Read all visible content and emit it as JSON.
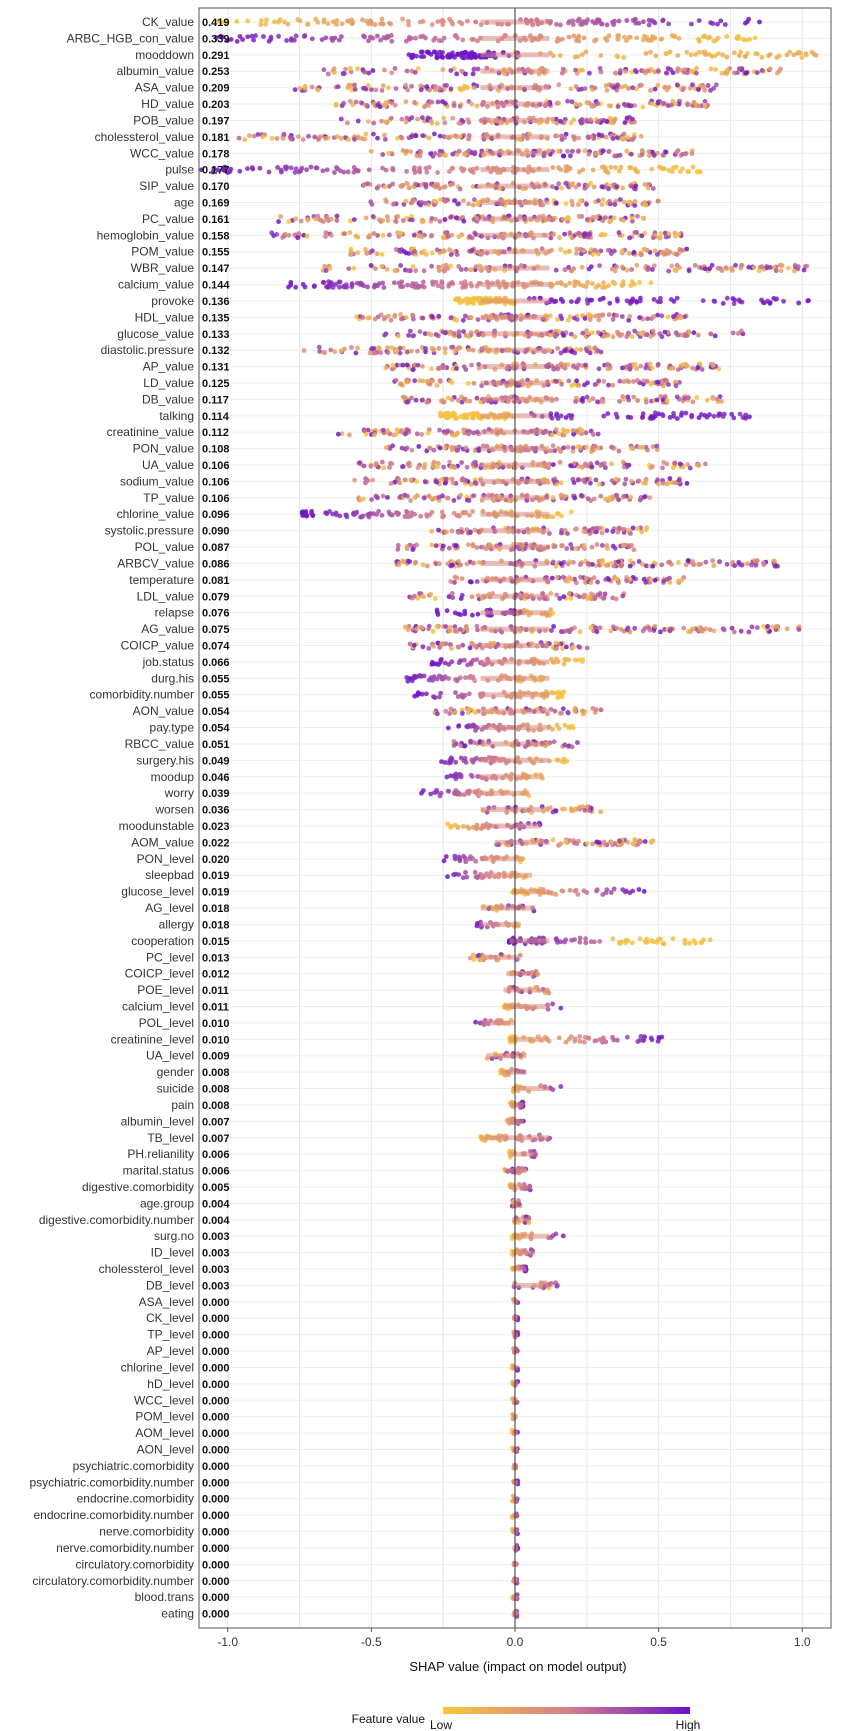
{
  "chart_data": {
    "type": "scatter",
    "subtype": "shap_beeswarm_summary",
    "xlabel": "SHAP value (impact on model output)",
    "xlim": [
      -1.1,
      1.1
    ],
    "xticks": [
      -1.0,
      -0.5,
      0.0,
      0.5,
      1.0
    ],
    "xtick_labels": [
      "-1.0",
      "-0.5",
      "0.0",
      "0.5",
      "1.0"
    ],
    "grid": true,
    "legend": {
      "title": "Feature value",
      "low_label": "Low",
      "high_label": "High",
      "low_color": "#f7c53a",
      "mid_color": "#d4818a",
      "high_color": "#6a12c9",
      "position": "bottom-center"
    },
    "features": [
      {
        "name": "CK_value",
        "mean_abs_shap": "0.419",
        "min": -1.05,
        "max": 0.86,
        "pattern": "low_left"
      },
      {
        "name": "ARBC_HGB_con_value",
        "mean_abs_shap": "0.339",
        "min": -1.05,
        "max": 0.85,
        "pattern": "high_left"
      },
      {
        "name": "mooddown",
        "mean_abs_shap": "0.291",
        "min": -0.37,
        "max": 1.08,
        "pattern": "high_left_cluster"
      },
      {
        "name": "albumin_value",
        "mean_abs_shap": "0.253",
        "min": -0.67,
        "max": 0.94,
        "pattern": "mixed"
      },
      {
        "name": "ASA_value",
        "mean_abs_shap": "0.209",
        "min": -0.77,
        "max": 0.72,
        "pattern": "mixed"
      },
      {
        "name": "HD_value",
        "mean_abs_shap": "0.203",
        "min": -0.63,
        "max": 0.68,
        "pattern": "mixed"
      },
      {
        "name": "POB_value",
        "mean_abs_shap": "0.197",
        "min": -0.61,
        "max": 0.43,
        "pattern": "mixed"
      },
      {
        "name": "cholessterol_value",
        "mean_abs_shap": "0.181",
        "min": -0.97,
        "max": 0.45,
        "pattern": "mixed"
      },
      {
        "name": "WCC_value",
        "mean_abs_shap": "0.178",
        "min": -0.51,
        "max": 0.62,
        "pattern": "mixed"
      },
      {
        "name": "pulse",
        "mean_abs_shap": "0.177",
        "min": -1.1,
        "max": 0.65,
        "pattern": "high_left"
      },
      {
        "name": "SIP_value",
        "mean_abs_shap": "0.170",
        "min": -0.53,
        "max": 0.49,
        "pattern": "mixed"
      },
      {
        "name": "age",
        "mean_abs_shap": "0.169",
        "min": -0.51,
        "max": 0.5,
        "pattern": "mixed"
      },
      {
        "name": "PC_value",
        "mean_abs_shap": "0.161",
        "min": -0.83,
        "max": 0.45,
        "pattern": "mixed"
      },
      {
        "name": "hemoglobin_value",
        "mean_abs_shap": "0.158",
        "min": -0.86,
        "max": 0.58,
        "pattern": "mixed"
      },
      {
        "name": "POM_value",
        "mean_abs_shap": "0.155",
        "min": -0.58,
        "max": 0.6,
        "pattern": "mixed"
      },
      {
        "name": "WBR_value",
        "mean_abs_shap": "0.147",
        "min": -0.68,
        "max": 1.03,
        "pattern": "mixed"
      },
      {
        "name": "calcium_value",
        "mean_abs_shap": "0.144",
        "min": -0.8,
        "max": 0.49,
        "pattern": "high_left"
      },
      {
        "name": "provoke",
        "mean_abs_shap": "0.136",
        "min": -0.21,
        "max": 1.03,
        "pattern": "low_left_cluster"
      },
      {
        "name": "HDL_value",
        "mean_abs_shap": "0.135",
        "min": -0.57,
        "max": 0.6,
        "pattern": "mixed"
      },
      {
        "name": "glucose_value",
        "mean_abs_shap": "0.133",
        "min": -0.46,
        "max": 0.81,
        "pattern": "mixed"
      },
      {
        "name": "diastolic.pressure",
        "mean_abs_shap": "0.132",
        "min": -0.74,
        "max": 0.3,
        "pattern": "mixed"
      },
      {
        "name": "AP_value",
        "mean_abs_shap": "0.131",
        "min": -0.45,
        "max": 0.71,
        "pattern": "mixed"
      },
      {
        "name": "LD_value",
        "mean_abs_shap": "0.125",
        "min": -0.44,
        "max": 0.58,
        "pattern": "mixed"
      },
      {
        "name": "DB_value",
        "mean_abs_shap": "0.117",
        "min": -0.41,
        "max": 0.72,
        "pattern": "mixed"
      },
      {
        "name": "talking",
        "mean_abs_shap": "0.114",
        "min": -0.26,
        "max": 0.82,
        "pattern": "low_left_cluster"
      },
      {
        "name": "creatinine_value",
        "mean_abs_shap": "0.112",
        "min": -0.62,
        "max": 0.29,
        "pattern": "mixed"
      },
      {
        "name": "PON_value",
        "mean_abs_shap": "0.108",
        "min": -0.45,
        "max": 0.5,
        "pattern": "mixed"
      },
      {
        "name": "UA_value",
        "mean_abs_shap": "0.106",
        "min": -0.55,
        "max": 0.67,
        "pattern": "mixed"
      },
      {
        "name": "sodium_value",
        "mean_abs_shap": "0.106",
        "min": -0.56,
        "max": 0.6,
        "pattern": "mixed"
      },
      {
        "name": "TP_value",
        "mean_abs_shap": "0.106",
        "min": -0.55,
        "max": 0.48,
        "pattern": "mixed"
      },
      {
        "name": "chlorine_value",
        "mean_abs_shap": "0.096",
        "min": -0.75,
        "max": 0.2,
        "pattern": "high_left"
      },
      {
        "name": "systolic.pressure",
        "mean_abs_shap": "0.090",
        "min": -0.3,
        "max": 0.47,
        "pattern": "mixed"
      },
      {
        "name": "POL_value",
        "mean_abs_shap": "0.087",
        "min": -0.41,
        "max": 0.42,
        "pattern": "mixed"
      },
      {
        "name": "ARBCV_value",
        "mean_abs_shap": "0.086",
        "min": -0.42,
        "max": 0.92,
        "pattern": "mixed"
      },
      {
        "name": "temperature",
        "mean_abs_shap": "0.081",
        "min": -0.24,
        "max": 0.6,
        "pattern": "mixed"
      },
      {
        "name": "LDL_value",
        "mean_abs_shap": "0.079",
        "min": -0.37,
        "max": 0.4,
        "pattern": "mixed"
      },
      {
        "name": "relapse",
        "mean_abs_shap": "0.076",
        "min": -0.28,
        "max": 0.14,
        "pattern": "high_left_cluster"
      },
      {
        "name": "AG_value",
        "mean_abs_shap": "0.075",
        "min": -0.39,
        "max": 1.0,
        "pattern": "mixed"
      },
      {
        "name": "COICP_value",
        "mean_abs_shap": "0.074",
        "min": -0.37,
        "max": 0.26,
        "pattern": "mixed"
      },
      {
        "name": "job.status",
        "mean_abs_shap": "0.066",
        "min": -0.3,
        "max": 0.24,
        "pattern": "high_left"
      },
      {
        "name": "durg.his",
        "mean_abs_shap": "0.055",
        "min": -0.4,
        "max": 0.12,
        "pattern": "high_left"
      },
      {
        "name": "comorbidity.number",
        "mean_abs_shap": "0.055",
        "min": -0.35,
        "max": 0.17,
        "pattern": "high_left"
      },
      {
        "name": "AON_value",
        "mean_abs_shap": "0.054",
        "min": -0.3,
        "max": 0.3,
        "pattern": "mixed"
      },
      {
        "name": "pay.type",
        "mean_abs_shap": "0.054",
        "min": -0.24,
        "max": 0.21,
        "pattern": "high_left"
      },
      {
        "name": "RBCC_value",
        "mean_abs_shap": "0.051",
        "min": -0.23,
        "max": 0.23,
        "pattern": "mixed"
      },
      {
        "name": "surgery.his",
        "mean_abs_shap": "0.049",
        "min": -0.28,
        "max": 0.19,
        "pattern": "high_left"
      },
      {
        "name": "moodup",
        "mean_abs_shap": "0.046",
        "min": -0.26,
        "max": 0.1,
        "pattern": "high_left"
      },
      {
        "name": "worry",
        "mean_abs_shap": "0.039",
        "min": -0.34,
        "max": 0.05,
        "pattern": "high_left"
      },
      {
        "name": "worsen",
        "mean_abs_shap": "0.036",
        "min": -0.12,
        "max": 0.3,
        "pattern": "mixed"
      },
      {
        "name": "moodunstable",
        "mean_abs_shap": "0.023",
        "min": -0.24,
        "max": 0.09,
        "pattern": "low_left"
      },
      {
        "name": "AOM_value",
        "mean_abs_shap": "0.022",
        "min": -0.07,
        "max": 0.54,
        "pattern": "mixed"
      },
      {
        "name": "PON_level",
        "mean_abs_shap": "0.020",
        "min": -0.25,
        "max": 0.03,
        "pattern": "high_left"
      },
      {
        "name": "sleepbad",
        "mean_abs_shap": "0.019",
        "min": -0.24,
        "max": 0.06,
        "pattern": "high_left"
      },
      {
        "name": "glucose_level",
        "mean_abs_shap": "0.019",
        "min": -0.01,
        "max": 0.45,
        "pattern": "high_right"
      },
      {
        "name": "AG_level",
        "mean_abs_shap": "0.018",
        "min": -0.12,
        "max": 0.07,
        "pattern": "mixed"
      },
      {
        "name": "allergy",
        "mean_abs_shap": "0.018",
        "min": -0.14,
        "max": 0.02,
        "pattern": "high_left"
      },
      {
        "name": "cooperation",
        "mean_abs_shap": "0.015",
        "min": -0.02,
        "max": 0.68,
        "pattern": "low_right"
      },
      {
        "name": "PC_level",
        "mean_abs_shap": "0.013",
        "min": -0.17,
        "max": 0.02,
        "pattern": "mixed"
      },
      {
        "name": "COICP_level",
        "mean_abs_shap": "0.012",
        "min": -0.03,
        "max": 0.08,
        "pattern": "mixed"
      },
      {
        "name": "POE_level",
        "mean_abs_shap": "0.011",
        "min": -0.04,
        "max": 0.12,
        "pattern": "mixed"
      },
      {
        "name": "calcium_level",
        "mean_abs_shap": "0.011",
        "min": -0.04,
        "max": 0.17,
        "pattern": "high_right"
      },
      {
        "name": "POL_level",
        "mean_abs_shap": "0.010",
        "min": -0.14,
        "max": 0.0,
        "pattern": "high_left"
      },
      {
        "name": "creatinine_level",
        "mean_abs_shap": "0.010",
        "min": -0.02,
        "max": 0.53,
        "pattern": "high_right"
      },
      {
        "name": "UA_level",
        "mean_abs_shap": "0.009",
        "min": -0.1,
        "max": 0.04,
        "pattern": "mixed"
      },
      {
        "name": "gender",
        "mean_abs_shap": "0.008",
        "min": -0.05,
        "max": 0.04,
        "pattern": "high_right"
      },
      {
        "name": "suicide",
        "mean_abs_shap": "0.008",
        "min": -0.01,
        "max": 0.18,
        "pattern": "high_right"
      },
      {
        "name": "pain",
        "mean_abs_shap": "0.008",
        "min": -0.02,
        "max": 0.03,
        "pattern": "low_left"
      },
      {
        "name": "albumin_level",
        "mean_abs_shap": "0.007",
        "min": -0.03,
        "max": 0.03,
        "pattern": "high_right"
      },
      {
        "name": "TB_level",
        "mean_abs_shap": "0.007",
        "min": -0.12,
        "max": 0.18,
        "pattern": "high_right"
      },
      {
        "name": "PH.relianility",
        "mean_abs_shap": "0.006",
        "min": -0.02,
        "max": 0.08,
        "pattern": "high_right"
      },
      {
        "name": "marital.status",
        "mean_abs_shap": "0.006",
        "min": -0.04,
        "max": 0.04,
        "pattern": "mixed"
      },
      {
        "name": "digestive.comorbidity",
        "mean_abs_shap": "0.005",
        "min": -0.02,
        "max": 0.06,
        "pattern": "high_right"
      },
      {
        "name": "age.group",
        "mean_abs_shap": "0.004",
        "min": -0.01,
        "max": 0.02,
        "pattern": "mixed"
      },
      {
        "name": "digestive.comorbidity.number",
        "mean_abs_shap": "0.004",
        "min": -0.01,
        "max": 0.05,
        "pattern": "mixed"
      },
      {
        "name": "surg.no",
        "mean_abs_shap": "0.003",
        "min": -0.01,
        "max": 0.18,
        "pattern": "high_right"
      },
      {
        "name": "ID_level",
        "mean_abs_shap": "0.003",
        "min": -0.01,
        "max": 0.07,
        "pattern": "high_right"
      },
      {
        "name": "cholessterol_level",
        "mean_abs_shap": "0.003",
        "min": -0.01,
        "max": 0.04,
        "pattern": "high_right"
      },
      {
        "name": "DB_level",
        "mean_abs_shap": "0.003",
        "min": -0.01,
        "max": 0.15,
        "pattern": "mixed"
      },
      {
        "name": "ASA_level",
        "mean_abs_shap": "0.000",
        "min": -0.01,
        "max": 0.01,
        "pattern": "zero"
      },
      {
        "name": "CK_level",
        "mean_abs_shap": "0.000",
        "min": -0.01,
        "max": 0.01,
        "pattern": "zero"
      },
      {
        "name": "TP_level",
        "mean_abs_shap": "0.000",
        "min": -0.01,
        "max": 0.01,
        "pattern": "zero"
      },
      {
        "name": "AP_level",
        "mean_abs_shap": "0.000",
        "min": -0.01,
        "max": 0.01,
        "pattern": "zero"
      },
      {
        "name": "chlorine_level",
        "mean_abs_shap": "0.000",
        "min": -0.01,
        "max": 0.01,
        "pattern": "zero"
      },
      {
        "name": "hD_level",
        "mean_abs_shap": "0.000",
        "min": -0.01,
        "max": 0.01,
        "pattern": "zero"
      },
      {
        "name": "WCC_level",
        "mean_abs_shap": "0.000",
        "min": -0.01,
        "max": 0.01,
        "pattern": "zero"
      },
      {
        "name": "POM_level",
        "mean_abs_shap": "0.000",
        "min": -0.01,
        "max": 0.01,
        "pattern": "zero"
      },
      {
        "name": "AOM_level",
        "mean_abs_shap": "0.000",
        "min": -0.01,
        "max": 0.01,
        "pattern": "zero"
      },
      {
        "name": "AON_level",
        "mean_abs_shap": "0.000",
        "min": -0.01,
        "max": 0.01,
        "pattern": "zero"
      },
      {
        "name": "psychiatric.comorbidity",
        "mean_abs_shap": "0.000",
        "min": -0.01,
        "max": 0.01,
        "pattern": "zero"
      },
      {
        "name": "psychiatric.comorbidity.number",
        "mean_abs_shap": "0.000",
        "min": -0.01,
        "max": 0.01,
        "pattern": "zero"
      },
      {
        "name": "endocrine.comorbidity",
        "mean_abs_shap": "0.000",
        "min": -0.01,
        "max": 0.01,
        "pattern": "zero"
      },
      {
        "name": "endocrine.comorbidity.number",
        "mean_abs_shap": "0.000",
        "min": -0.01,
        "max": 0.01,
        "pattern": "zero"
      },
      {
        "name": "nerve.comorbidity",
        "mean_abs_shap": "0.000",
        "min": -0.01,
        "max": 0.01,
        "pattern": "zero"
      },
      {
        "name": "nerve.comorbidity.number",
        "mean_abs_shap": "0.000",
        "min": -0.01,
        "max": 0.01,
        "pattern": "zero"
      },
      {
        "name": "circulatory.comorbidity",
        "mean_abs_shap": "0.000",
        "min": -0.01,
        "max": 0.01,
        "pattern": "zero"
      },
      {
        "name": "circulatory.comorbidity.number",
        "mean_abs_shap": "0.000",
        "min": -0.01,
        "max": 0.01,
        "pattern": "zero"
      },
      {
        "name": "blood.trans",
        "mean_abs_shap": "0.000",
        "min": -0.01,
        "max": 0.01,
        "pattern": "zero"
      },
      {
        "name": "eating",
        "mean_abs_shap": "0.000",
        "min": -0.01,
        "max": 0.01,
        "pattern": "zero"
      }
    ]
  }
}
